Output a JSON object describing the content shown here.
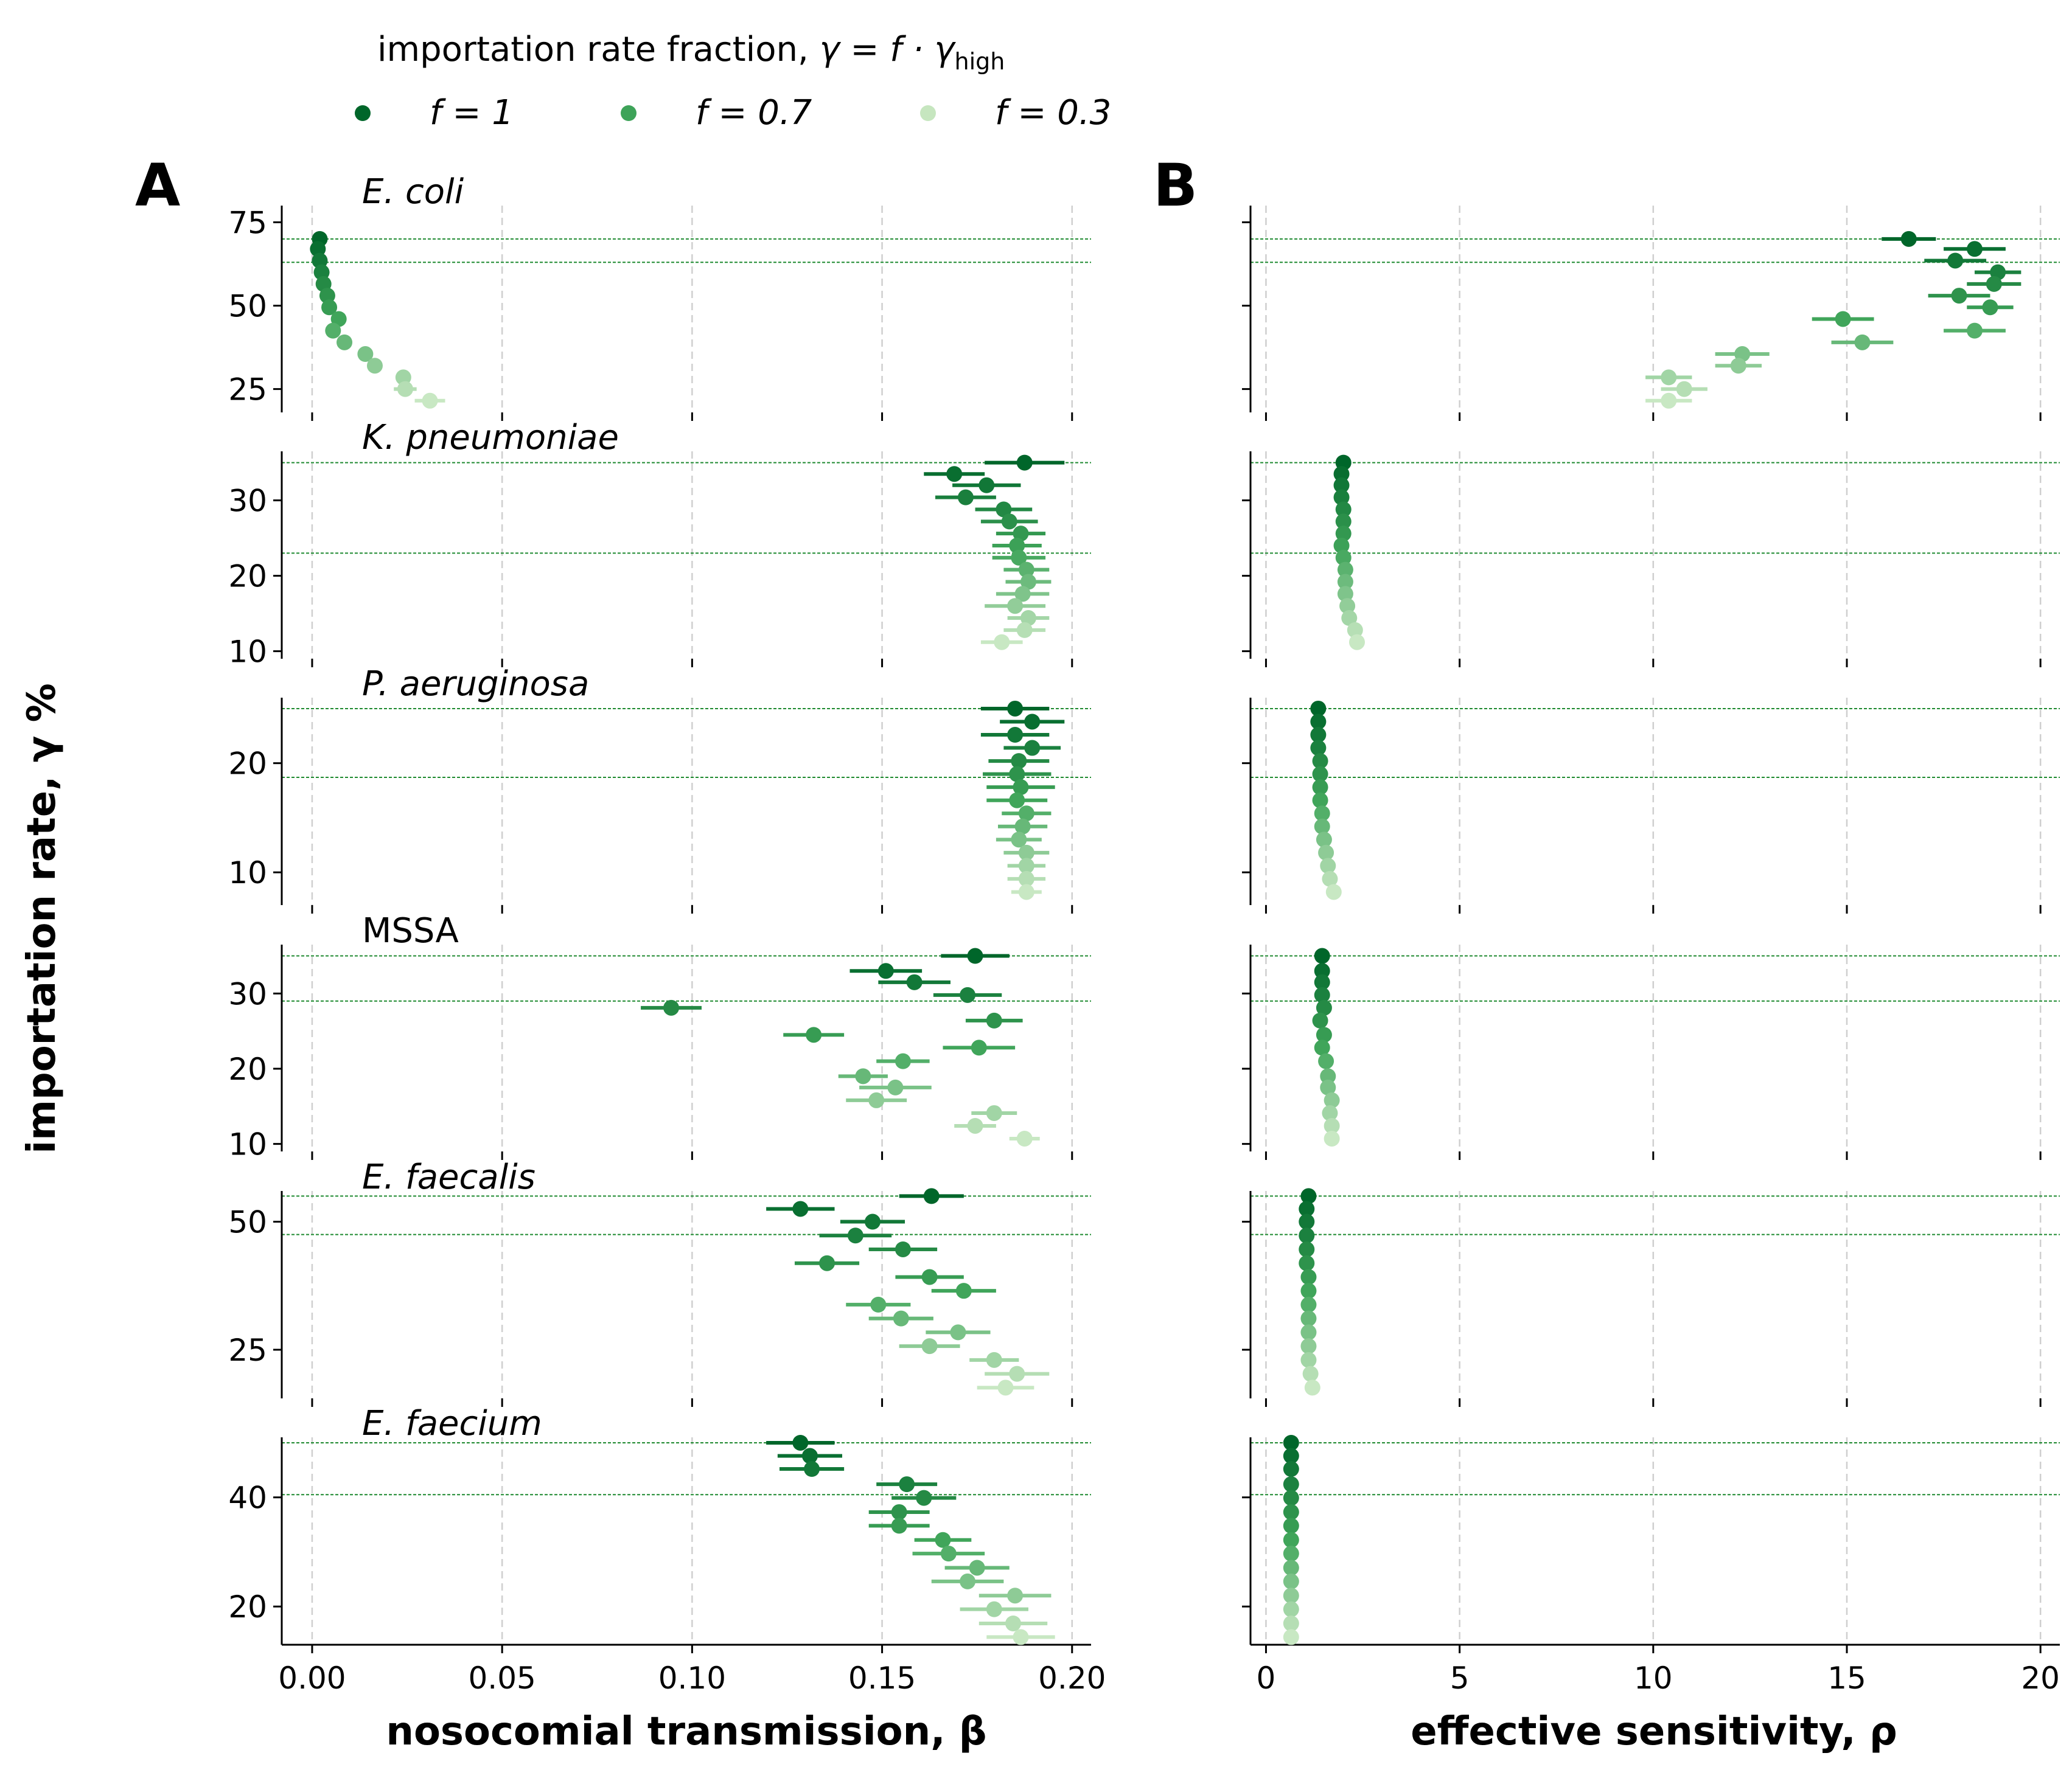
{
  "legend": {
    "title_prefix": "importation rate fraction, ",
    "title_gamma": "γ = f · γ",
    "title_sub": "high",
    "entries": [
      {
        "label": "f = 1",
        "color": "#00662a"
      },
      {
        "label": "f = 0.7",
        "color": "#3ea359"
      },
      {
        "label": "f = 0.3",
        "color": "#c6e6bf"
      }
    ]
  },
  "panels": {
    "left": "A",
    "right": "B"
  },
  "axes": {
    "ylabel": "importation rate, γ %",
    "left_xlabel": "nosocomial transmission, β",
    "right_xlabel": "effective sensitivity, ρ",
    "left_xlim": [
      -0.008,
      0.205
    ],
    "right_xlim": [
      -0.4,
      20.5
    ],
    "left_xticks": [
      "0.00",
      "0.05",
      "0.10",
      "0.15",
      "0.20"
    ],
    "left_xtick_values": [
      0,
      0.05,
      0.1,
      0.15,
      0.2
    ],
    "right_xticks": [
      "0",
      "5",
      "10",
      "15",
      "20"
    ],
    "right_xtick_values": [
      0,
      5,
      10,
      15,
      20
    ]
  },
  "chart_data": [
    {
      "type": "scatter",
      "species": "E. coli",
      "italic": true,
      "ylim": [
        18,
        80
      ],
      "yticks": [
        25,
        50,
        75
      ],
      "hlines": [
        70,
        63
      ],
      "beta": [
        [
          70,
          0.002,
          0
        ],
        [
          67,
          0.0015,
          0
        ],
        [
          63.5,
          0.002,
          0
        ],
        [
          60,
          0.0025,
          0
        ],
        [
          56.5,
          0.003,
          0
        ],
        [
          53,
          0.004,
          0
        ],
        [
          49.5,
          0.0045,
          0
        ],
        [
          46,
          0.007,
          0
        ],
        [
          42.5,
          0.0055,
          0
        ],
        [
          39,
          0.0085,
          0
        ],
        [
          35.5,
          0.014,
          0
        ],
        [
          32,
          0.0165,
          0
        ],
        [
          28.5,
          0.024,
          0.002
        ],
        [
          25,
          0.0245,
          0.003
        ],
        [
          21.5,
          0.031,
          0.004
        ]
      ],
      "rho": [
        [
          70,
          16.6,
          0.7
        ],
        [
          67,
          18.3,
          0.8
        ],
        [
          63.5,
          17.8,
          0.8
        ],
        [
          60,
          18.9,
          0.6
        ],
        [
          56.5,
          18.8,
          0.7
        ],
        [
          53,
          17.9,
          0.8
        ],
        [
          49.5,
          18.7,
          0.6
        ],
        [
          46,
          14.9,
          0.8
        ],
        [
          42.5,
          18.3,
          0.8
        ],
        [
          39,
          15.4,
          0.8
        ],
        [
          35.5,
          12.3,
          0.7
        ],
        [
          32,
          12.2,
          0.6
        ],
        [
          28.5,
          10.4,
          0.6
        ],
        [
          25,
          10.8,
          0.6
        ],
        [
          21.5,
          10.4,
          0.6
        ]
      ]
    },
    {
      "type": "scatter",
      "species": "K. pneumoniae",
      "italic": true,
      "ylim": [
        9,
        36.5
      ],
      "yticks": [
        10,
        20,
        30
      ],
      "hlines": [
        35,
        23
      ],
      "beta": [
        [
          35,
          0.1875,
          0.0105
        ],
        [
          33.5,
          0.169,
          0.008
        ],
        [
          32,
          0.1775,
          0.009
        ],
        [
          30.4,
          0.172,
          0.008
        ],
        [
          28.8,
          0.182,
          0.0075
        ],
        [
          27.2,
          0.1835,
          0.0075
        ],
        [
          25.6,
          0.1865,
          0.0065
        ],
        [
          24,
          0.1855,
          0.0065
        ],
        [
          22.4,
          0.186,
          0.007
        ],
        [
          20.8,
          0.188,
          0.006
        ],
        [
          19.2,
          0.1885,
          0.006
        ],
        [
          17.6,
          0.187,
          0.007
        ],
        [
          16,
          0.185,
          0.008
        ],
        [
          14.4,
          0.1885,
          0.0055
        ],
        [
          12.8,
          0.1875,
          0.0055
        ],
        [
          11.2,
          0.1815,
          0.0055
        ]
      ],
      "rho": [
        [
          35,
          2.0,
          0.05
        ],
        [
          33.5,
          1.95,
          0.05
        ],
        [
          32,
          1.95,
          0.05
        ],
        [
          30.4,
          1.95,
          0.05
        ],
        [
          28.8,
          2.0,
          0.05
        ],
        [
          27.2,
          2.0,
          0.05
        ],
        [
          25.6,
          2.0,
          0.05
        ],
        [
          24,
          1.95,
          0.05
        ],
        [
          22.4,
          2.0,
          0.05
        ],
        [
          20.8,
          2.05,
          0.05
        ],
        [
          19.2,
          2.05,
          0.05
        ],
        [
          17.6,
          2.05,
          0.05
        ],
        [
          16,
          2.1,
          0.05
        ],
        [
          14.4,
          2.15,
          0.05
        ],
        [
          12.8,
          2.3,
          0.05
        ],
        [
          11.2,
          2.35,
          0.05
        ]
      ]
    },
    {
      "type": "scatter",
      "species": "P. aeruginosa",
      "italic": true,
      "ylim": [
        7,
        26
      ],
      "yticks": [
        10,
        20
      ],
      "hlines": [
        25,
        18.7
      ],
      "beta": [
        [
          25,
          0.185,
          0.009
        ],
        [
          23.8,
          0.1895,
          0.0085
        ],
        [
          22.6,
          0.185,
          0.009
        ],
        [
          21.4,
          0.1895,
          0.0075
        ],
        [
          20.2,
          0.186,
          0.008
        ],
        [
          19,
          0.1855,
          0.009
        ],
        [
          17.8,
          0.1865,
          0.009
        ],
        [
          16.6,
          0.1855,
          0.008
        ],
        [
          15.4,
          0.188,
          0.0065
        ],
        [
          14.2,
          0.187,
          0.0065
        ],
        [
          13,
          0.186,
          0.006
        ],
        [
          11.8,
          0.188,
          0.006
        ],
        [
          10.6,
          0.188,
          0.005
        ],
        [
          9.4,
          0.188,
          0.005
        ],
        [
          8.2,
          0.188,
          0.004
        ]
      ],
      "rho": [
        [
          25,
          1.35,
          0.04
        ],
        [
          23.8,
          1.35,
          0.04
        ],
        [
          22.6,
          1.35,
          0.04
        ],
        [
          21.4,
          1.35,
          0.04
        ],
        [
          20.2,
          1.4,
          0.04
        ],
        [
          19,
          1.4,
          0.04
        ],
        [
          17.8,
          1.4,
          0.04
        ],
        [
          16.6,
          1.4,
          0.04
        ],
        [
          15.4,
          1.45,
          0.04
        ],
        [
          14.2,
          1.45,
          0.04
        ],
        [
          13,
          1.5,
          0.04
        ],
        [
          11.8,
          1.55,
          0.04
        ],
        [
          10.6,
          1.6,
          0.04
        ],
        [
          9.4,
          1.65,
          0.04
        ],
        [
          8.2,
          1.75,
          0.04
        ]
      ]
    },
    {
      "type": "scatter",
      "species": "MSSA",
      "italic": false,
      "ylim": [
        9,
        36.5
      ],
      "yticks": [
        10,
        20,
        30
      ],
      "hlines": [
        35,
        29
      ],
      "beta": [
        [
          35,
          0.1745,
          0.009
        ],
        [
          33,
          0.151,
          0.0095
        ],
        [
          31.5,
          0.1585,
          0.0095
        ],
        [
          29.8,
          0.1725,
          0.009
        ],
        [
          28.1,
          0.0945,
          0.008
        ],
        [
          26.4,
          0.1795,
          0.0075
        ],
        [
          24.5,
          0.132,
          0.008
        ],
        [
          22.8,
          0.1755,
          0.0095
        ],
        [
          21,
          0.1555,
          0.007
        ],
        [
          19,
          0.145,
          0.0065
        ],
        [
          17.5,
          0.1535,
          0.0095
        ],
        [
          15.8,
          0.1485,
          0.008
        ],
        [
          14.1,
          0.1795,
          0.006
        ],
        [
          12.4,
          0.1745,
          0.0055
        ],
        [
          10.7,
          0.1875,
          0.004
        ]
      ],
      "rho": [
        [
          35,
          1.45,
          0.05
        ],
        [
          33,
          1.45,
          0.05
        ],
        [
          31.5,
          1.45,
          0.05
        ],
        [
          29.8,
          1.45,
          0.05
        ],
        [
          28.1,
          1.5,
          0.05
        ],
        [
          26.4,
          1.4,
          0.05
        ],
        [
          24.5,
          1.5,
          0.05
        ],
        [
          22.8,
          1.45,
          0.05
        ],
        [
          21,
          1.55,
          0.05
        ],
        [
          19,
          1.6,
          0.05
        ],
        [
          17.5,
          1.6,
          0.05
        ],
        [
          15.8,
          1.7,
          0.05
        ],
        [
          14.1,
          1.65,
          0.05
        ],
        [
          12.4,
          1.7,
          0.05
        ],
        [
          10.7,
          1.7,
          0.05
        ]
      ]
    },
    {
      "type": "scatter",
      "species": "E. faecalis",
      "italic": true,
      "ylim": [
        15.5,
        56
      ],
      "yticks": [
        25,
        50
      ],
      "hlines": [
        55,
        47.5
      ],
      "beta": [
        [
          55,
          0.163,
          0.0085
        ],
        [
          52.5,
          0.1285,
          0.009
        ],
        [
          50,
          0.1475,
          0.0085
        ],
        [
          47.3,
          0.143,
          0.0095
        ],
        [
          44.6,
          0.1555,
          0.009
        ],
        [
          41.9,
          0.1355,
          0.0085
        ],
        [
          39.2,
          0.1625,
          0.009
        ],
        [
          36.5,
          0.1715,
          0.0085
        ],
        [
          33.8,
          0.149,
          0.0085
        ],
        [
          31.1,
          0.155,
          0.0085
        ],
        [
          28.4,
          0.17,
          0.0085
        ],
        [
          25.7,
          0.1625,
          0.008
        ],
        [
          23,
          0.1795,
          0.0065
        ],
        [
          20.3,
          0.1855,
          0.0085
        ],
        [
          17.6,
          0.1825,
          0.0075
        ]
      ],
      "rho": [
        [
          55,
          1.1,
          0.03
        ],
        [
          52.5,
          1.05,
          0.03
        ],
        [
          50,
          1.05,
          0.03
        ],
        [
          47.3,
          1.05,
          0.03
        ],
        [
          44.6,
          1.05,
          0.03
        ],
        [
          41.9,
          1.05,
          0.03
        ],
        [
          39.2,
          1.1,
          0.03
        ],
        [
          36.5,
          1.1,
          0.03
        ],
        [
          33.8,
          1.1,
          0.03
        ],
        [
          31.1,
          1.1,
          0.03
        ],
        [
          28.4,
          1.1,
          0.03
        ],
        [
          25.7,
          1.1,
          0.03
        ],
        [
          23,
          1.1,
          0.03
        ],
        [
          20.3,
          1.15,
          0.03
        ],
        [
          17.6,
          1.2,
          0.03
        ]
      ]
    },
    {
      "type": "scatter",
      "species": "E. faecium",
      "italic": true,
      "ylim": [
        13,
        51
      ],
      "yticks": [
        20,
        40
      ],
      "hlines": [
        50,
        40.5
      ],
      "beta": [
        [
          50,
          0.1285,
          0.009
        ],
        [
          47.6,
          0.131,
          0.0085
        ],
        [
          45.2,
          0.1315,
          0.0085
        ],
        [
          42.4,
          0.1565,
          0.008
        ],
        [
          39.9,
          0.161,
          0.0085
        ],
        [
          37.3,
          0.1545,
          0.008
        ],
        [
          34.8,
          0.1545,
          0.008
        ],
        [
          32.2,
          0.166,
          0.0075
        ],
        [
          29.7,
          0.1675,
          0.0095
        ],
        [
          27.1,
          0.175,
          0.0085
        ],
        [
          24.6,
          0.1725,
          0.0095
        ],
        [
          22,
          0.185,
          0.0095
        ],
        [
          19.5,
          0.1795,
          0.009
        ],
        [
          16.9,
          0.1845,
          0.009
        ],
        [
          14.4,
          0.1865,
          0.009
        ]
      ],
      "rho": [
        [
          50,
          0.65,
          0.03
        ],
        [
          47.6,
          0.65,
          0.03
        ],
        [
          45.2,
          0.65,
          0.03
        ],
        [
          42.4,
          0.65,
          0.03
        ],
        [
          39.9,
          0.65,
          0.03
        ],
        [
          37.3,
          0.65,
          0.03
        ],
        [
          34.8,
          0.65,
          0.03
        ],
        [
          32.2,
          0.65,
          0.03
        ],
        [
          29.7,
          0.65,
          0.03
        ],
        [
          27.1,
          0.65,
          0.03
        ],
        [
          24.6,
          0.65,
          0.03
        ],
        [
          22,
          0.65,
          0.03
        ],
        [
          19.5,
          0.65,
          0.03
        ],
        [
          16.9,
          0.65,
          0.03
        ],
        [
          14.4,
          0.65,
          0.03
        ]
      ]
    }
  ]
}
